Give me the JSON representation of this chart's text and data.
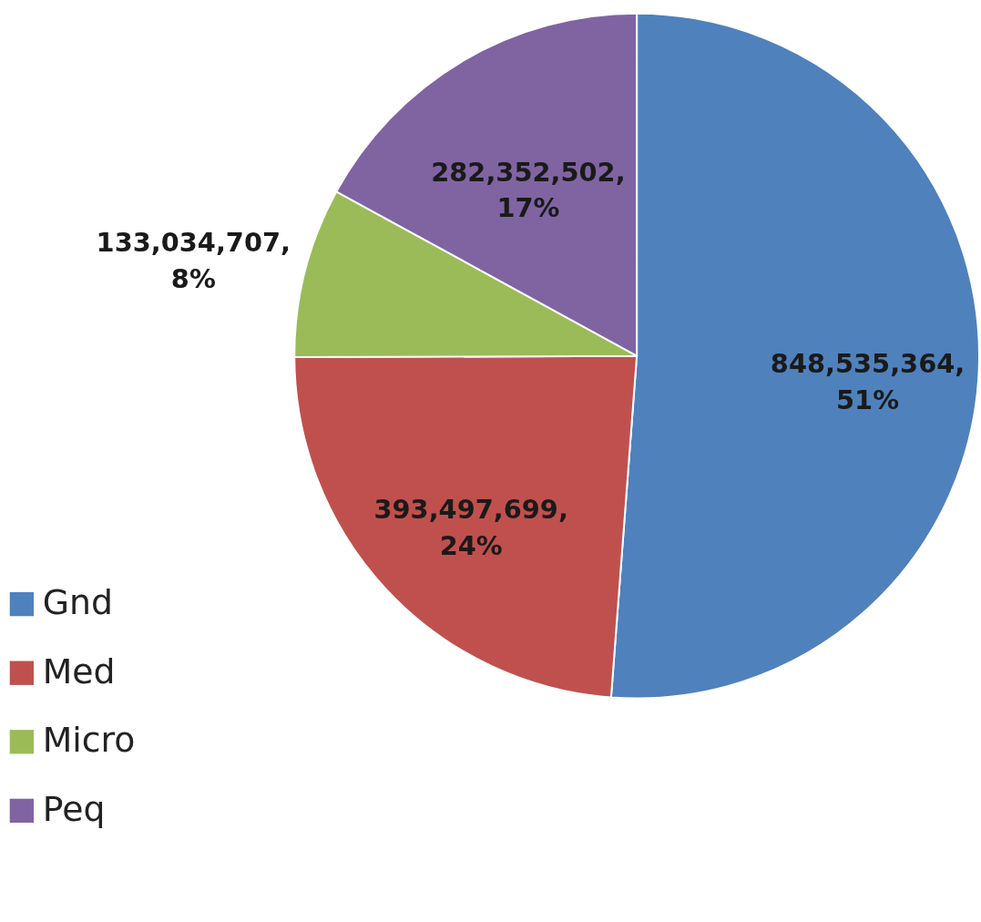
{
  "chart_data": {
    "type": "pie",
    "categories": [
      "Gnd",
      "Med",
      "Micro",
      "Peq"
    ],
    "values": [
      848535364,
      393497699,
      133034707,
      282352502
    ],
    "colors": [
      "#4f81bd",
      "#c0504d",
      "#9bbb59",
      "#8064a2"
    ],
    "value_labels": [
      "848,535,364,\n51%",
      "393,497,699,\n24%",
      "133,034,707,\n8%",
      "282,352,502,\n17%"
    ],
    "legend": "bottom left"
  }
}
